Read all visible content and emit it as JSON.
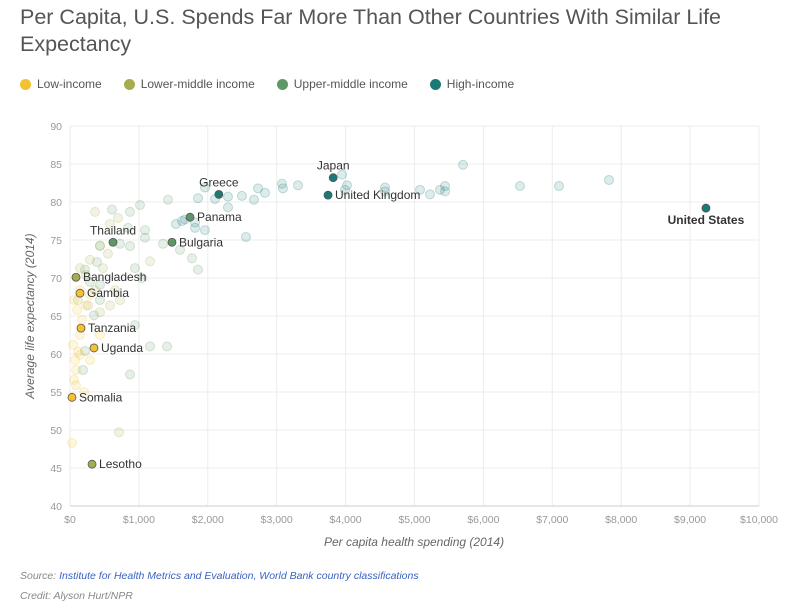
{
  "title": "Per Capita, U.S. Spends Far More Than Other Countries With Similar Life Expectancy",
  "colors": {
    "Low-income": "#f2c232",
    "Lower-middle income": "#a6ad4e",
    "Upper-middle income": "#5e9867",
    "High-income": "#1b7a76"
  },
  "legend": [
    "Low-income",
    "Lower-middle income",
    "Upper-middle income",
    "High-income"
  ],
  "source_label": "Source:",
  "source_text": "Institute for Health Metrics and Evaluation, World Bank country classifications",
  "credit": "Credit: Alyson Hurt/NPR",
  "chart_data": {
    "type": "scatter",
    "xlabel": "Per capita health spending (2014)",
    "ylabel": "Average life expectancy (2014)",
    "xlim": [
      0,
      10000
    ],
    "ylim": [
      40,
      90
    ],
    "xticks": [
      "$0",
      "$1,000",
      "$2,000",
      "$3,000",
      "$4,000",
      "$5,000",
      "$6,000",
      "$7,000",
      "$8,000",
      "$9,000",
      "$10,000"
    ],
    "xtick_values": [
      0,
      1000,
      2000,
      3000,
      4000,
      5000,
      6000,
      7000,
      8000,
      9000,
      10000
    ],
    "yticks": [
      40,
      45,
      50,
      55,
      60,
      65,
      70,
      75,
      80,
      85,
      90
    ],
    "grid": true,
    "labeled": [
      {
        "name": "Greece",
        "x": 2160,
        "y": 81.0,
        "group": "High-income",
        "label": "above"
      },
      {
        "name": "Japan",
        "x": 3820,
        "y": 83.2,
        "group": "High-income",
        "label": "above"
      },
      {
        "name": "United Kingdom",
        "x": 3745,
        "y": 80.9,
        "group": "High-income",
        "label": "right"
      },
      {
        "name": "United States",
        "x": 9230,
        "y": 79.2,
        "group": "High-income",
        "label": "below"
      },
      {
        "name": "Panama",
        "x": 1742,
        "y": 78.0,
        "group": "Upper-middle income",
        "label": "right"
      },
      {
        "name": "Bulgaria",
        "x": 1480,
        "y": 74.7,
        "group": "Upper-middle income",
        "label": "right"
      },
      {
        "name": "Thailand",
        "x": 624,
        "y": 74.7,
        "group": "Upper-middle income",
        "label": "above"
      },
      {
        "name": "Bangladesh",
        "x": 87,
        "y": 70.1,
        "group": "Lower-middle income",
        "label": "right"
      },
      {
        "name": "Gambia",
        "x": 145,
        "y": 68.0,
        "group": "Low-income",
        "label": "right"
      },
      {
        "name": "Tanzania",
        "x": 160,
        "y": 63.4,
        "group": "Low-income",
        "label": "right"
      },
      {
        "name": "Uganda",
        "x": 348,
        "y": 60.8,
        "group": "Low-income",
        "label": "right"
      },
      {
        "name": "Somalia",
        "x": 29,
        "y": 54.3,
        "group": "Low-income",
        "label": "right"
      },
      {
        "name": "Lesotho",
        "x": 320,
        "y": 45.5,
        "group": "Lower-middle income",
        "label": "right"
      }
    ],
    "others": {
      "High-income": [
        [
          5704,
          84.9
        ],
        [
          3948,
          83.6
        ],
        [
          4020,
          82.2
        ],
        [
          3991,
          81.6
        ],
        [
          4572,
          81.9
        ],
        [
          4572,
          81.4
        ],
        [
          5080,
          81.6
        ],
        [
          5225,
          81.0
        ],
        [
          5370,
          81.6
        ],
        [
          5443,
          82.1
        ],
        [
          5443,
          81.4
        ],
        [
          6531,
          82.1
        ],
        [
          7097,
          82.1
        ],
        [
          7823,
          82.9
        ],
        [
          3309,
          82.2
        ],
        [
          3091,
          81.8
        ],
        [
          3077,
          82.4
        ],
        [
          2830,
          81.2
        ],
        [
          2729,
          81.8
        ],
        [
          2670,
          80.3
        ],
        [
          2496,
          80.8
        ],
        [
          2293,
          80.7
        ],
        [
          2293,
          79.3
        ],
        [
          1959,
          81.9
        ],
        [
          2105,
          80.4
        ],
        [
          1858,
          80.5
        ],
        [
          2554,
          75.4
        ],
        [
          1959,
          76.3
        ],
        [
          1814,
          77.3
        ],
        [
          1538,
          77.1
        ],
        [
          1669,
          77.7
        ],
        [
          1814,
          76.6
        ],
        [
          1626,
          77.5
        ]
      ],
      "Upper-middle income": [
        [
          1422,
          80.3
        ],
        [
          1016,
          79.6
        ],
        [
          871,
          78.7
        ],
        [
          610,
          79.0
        ],
        [
          842,
          76.6
        ],
        [
          1088,
          76.3
        ],
        [
          1088,
          75.3
        ],
        [
          871,
          74.2
        ],
        [
          726,
          74.5
        ],
        [
          435,
          74.2
        ],
        [
          392,
          72.1
        ],
        [
          218,
          71.1
        ],
        [
          290,
          69.5
        ],
        [
          435,
          69.1
        ],
        [
          943,
          71.3
        ],
        [
          1045,
          70.0
        ],
        [
          435,
          67.1
        ],
        [
          348,
          65.1
        ],
        [
          943,
          63.8
        ],
        [
          1161,
          61.0
        ],
        [
          1408,
          61.0
        ],
        [
          871,
          57.3
        ],
        [
          218,
          60.4
        ],
        [
          189,
          57.9
        ],
        [
          1858,
          71.1
        ],
        [
          1770,
          72.6
        ],
        [
          1596,
          73.7
        ],
        [
          1350,
          74.5
        ]
      ],
      "Lower-middle income": [
        [
          363,
          78.7
        ],
        [
          580,
          77.1
        ],
        [
          697,
          77.9
        ],
        [
          435,
          74.3
        ],
        [
          290,
          72.4
        ],
        [
          145,
          71.3
        ],
        [
          232,
          70.4
        ],
        [
          363,
          68.4
        ],
        [
          261,
          66.4
        ],
        [
          435,
          65.5
        ],
        [
          580,
          66.4
        ],
        [
          726,
          67.1
        ],
        [
          653,
          68.4
        ],
        [
          479,
          71.3
        ],
        [
          551,
          73.2
        ],
        [
          1161,
          72.2
        ],
        [
          711,
          49.7
        ],
        [
          116,
          67.1
        ]
      ],
      "Low-income": [
        [
          29,
          48.3
        ],
        [
          58,
          56.6
        ],
        [
          87,
          57.9
        ],
        [
          73,
          59.2
        ],
        [
          116,
          60.3
        ],
        [
          44,
          61.2
        ],
        [
          145,
          62.5
        ],
        [
          174,
          64.5
        ],
        [
          102,
          65.8
        ],
        [
          232,
          66.4
        ],
        [
          58,
          67.1
        ],
        [
          290,
          67.8
        ],
        [
          145,
          68.4
        ],
        [
          435,
          62.5
        ],
        [
          145,
          59.9
        ],
        [
          290,
          59.2
        ],
        [
          203,
          55.0
        ],
        [
          87,
          55.9
        ]
      ]
    }
  }
}
